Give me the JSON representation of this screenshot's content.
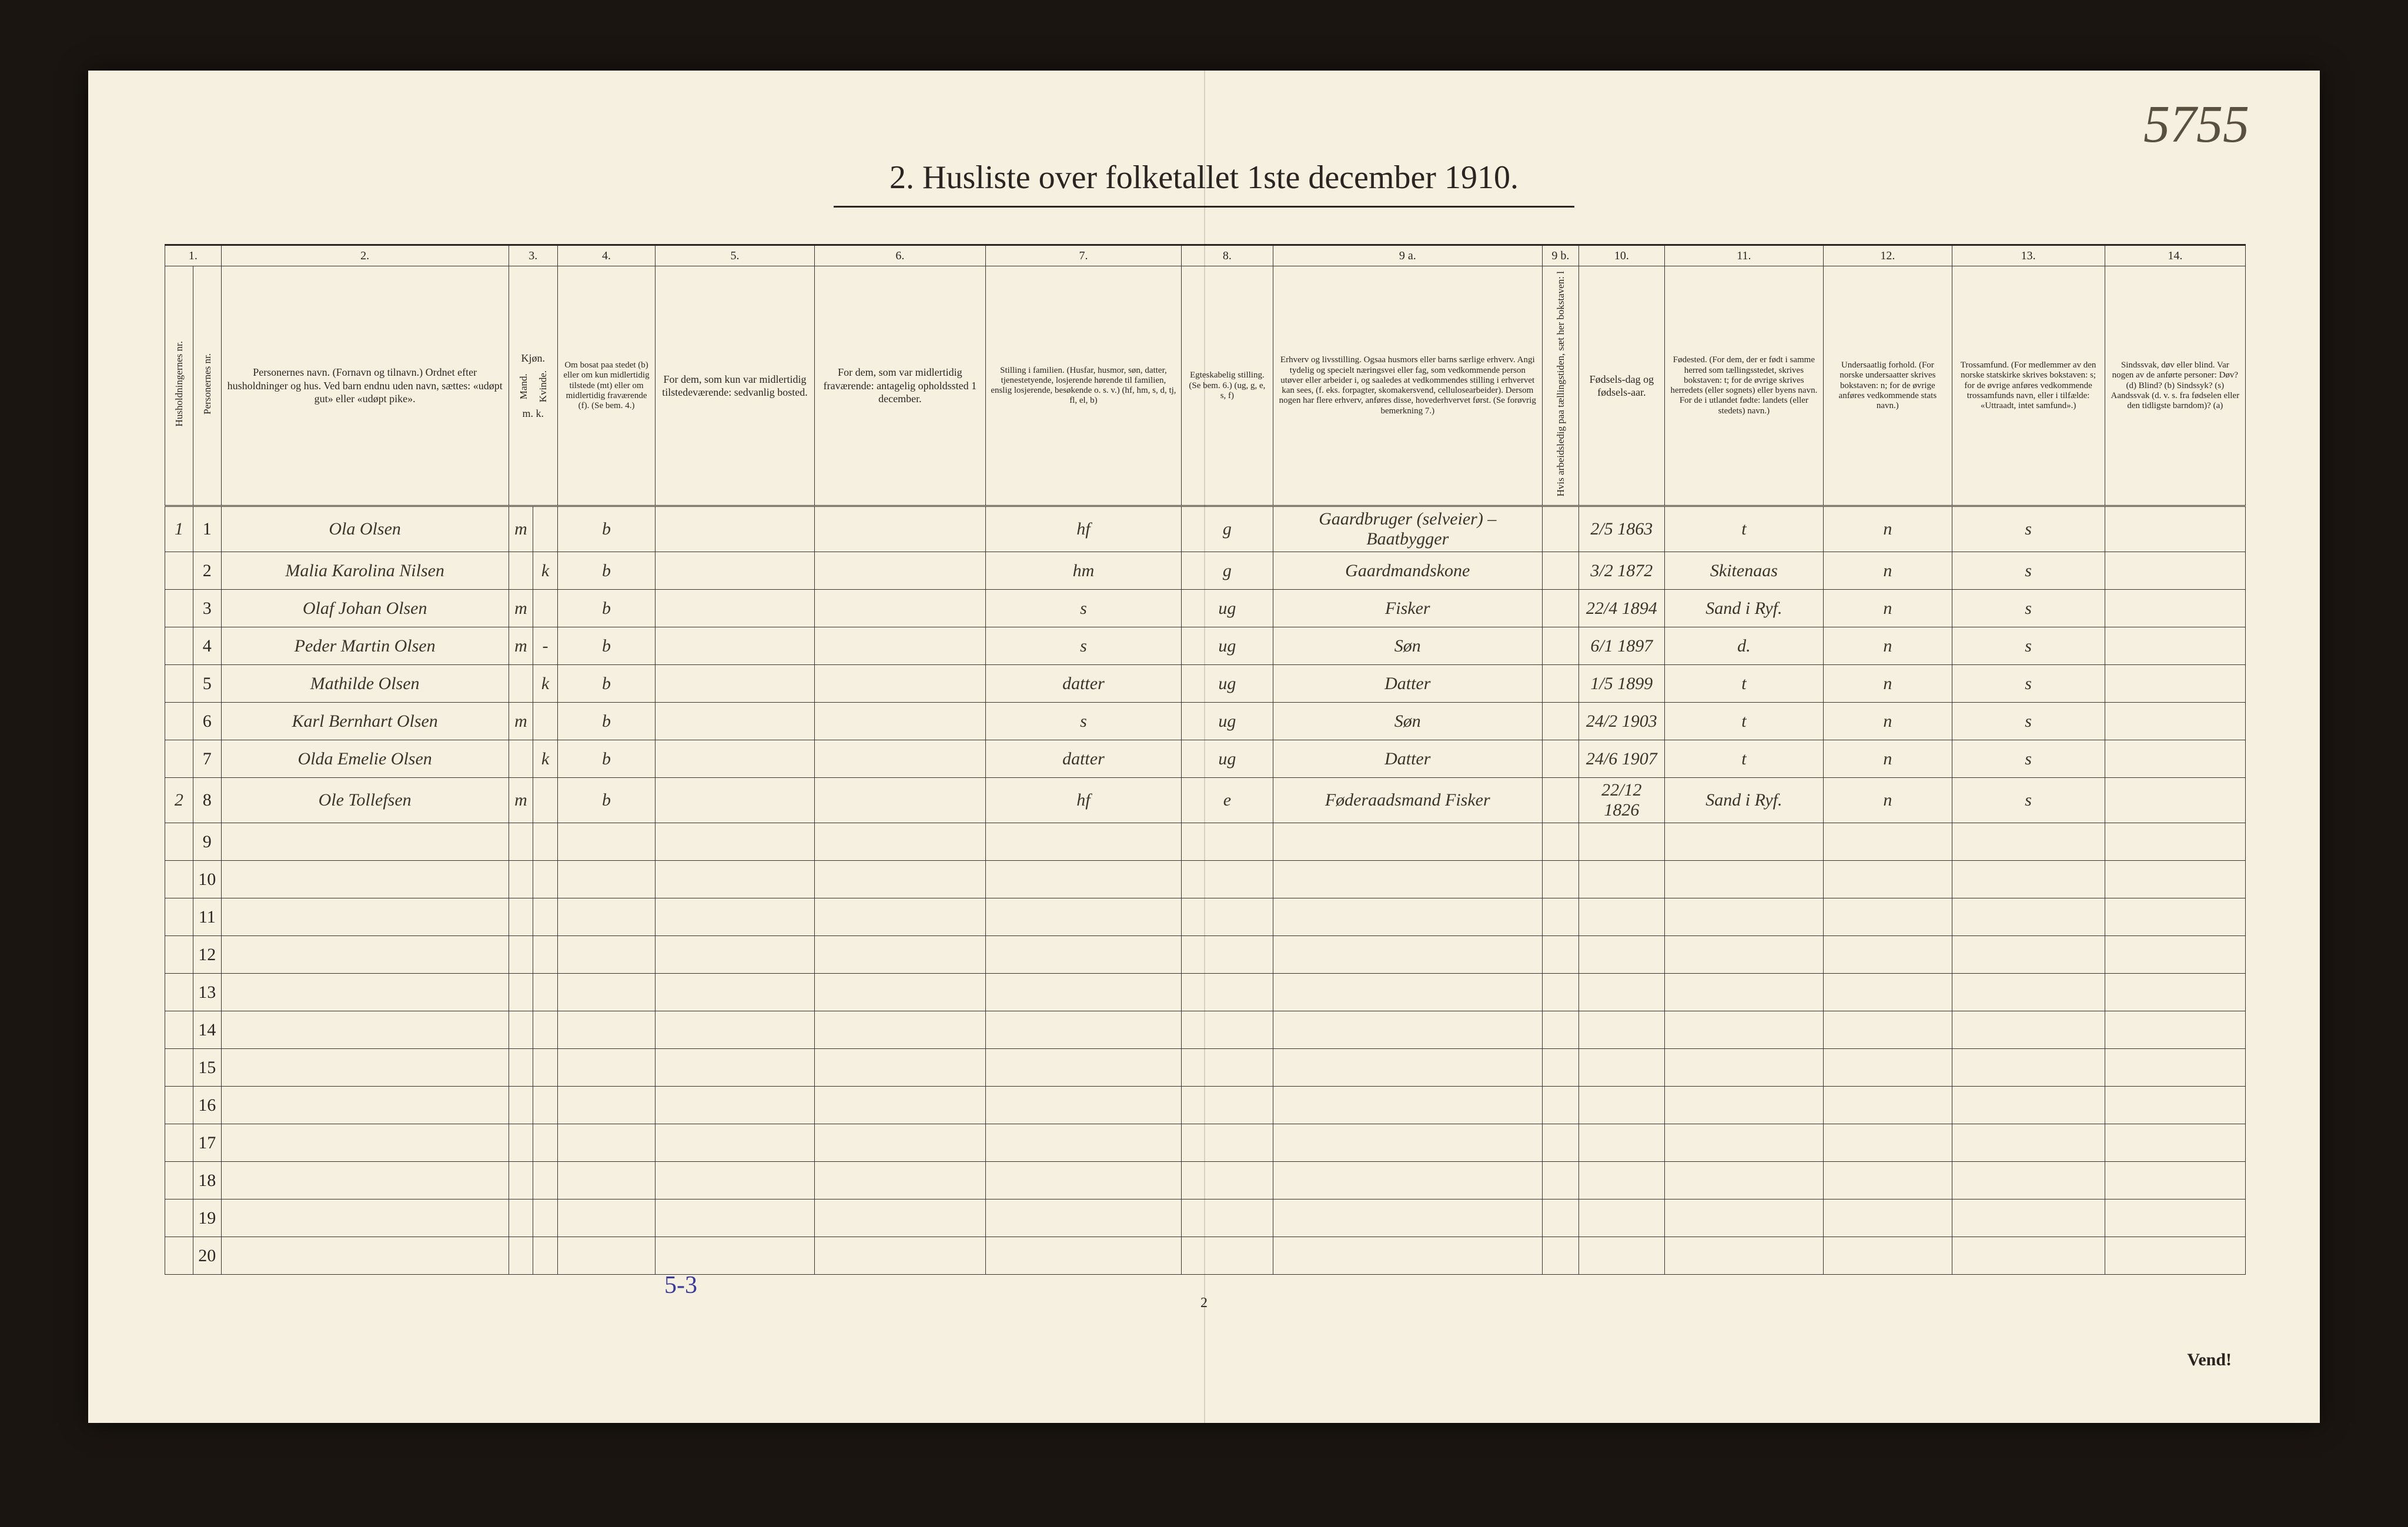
{
  "corner_note": "5755",
  "title": "2.  Husliste over folketallet 1ste december 1910.",
  "page_number": "2",
  "foot_annotation": "5-3",
  "vend": "Vend!",
  "columns": {
    "nums": [
      "1.",
      "2.",
      "3.",
      "4.",
      "5.",
      "6.",
      "7.",
      "8.",
      "9 a.",
      "9 b.",
      "10.",
      "11.",
      "12.",
      "13.",
      "14."
    ],
    "h1a": "Husholdningernes nr.",
    "h1b": "Personernes nr.",
    "h2": "Personernes navn.\n(Fornavn og tilnavn.)\nOrdnet efter husholdninger og hus.\nVed barn endnu uden navn, sættes: «udøpt gut» eller «udøpt pike».",
    "h3": "Kjøn.",
    "h3a": "Mand.",
    "h3b": "Kvinde.",
    "h3foot": "m. k.",
    "h4": "Om bosat paa stedet (b) eller om kun midlertidig tilstede (mt) eller om midlertidig fraværende (f). (Se bem. 4.)",
    "h5": "For dem, som kun var midlertidig tilstedeværende:\nsedvanlig bosted.",
    "h6": "For dem, som var midlertidig fraværende:\nantagelig opholdssted 1 december.",
    "h7": "Stilling i familien.\n(Husfar, husmor, søn, datter, tjenestetyende, losjerende hørende til familien, enslig losjerende, besøkende o. s. v.)\n(hf, hm, s, d, tj, fl, el, b)",
    "h8": "Egteskabelig stilling.\n(Se bem. 6.)\n(ug, g, e, s, f)",
    "h9a": "Erhverv og livsstilling.\nOgsaa husmors eller barns særlige erhverv. Angi tydelig og specielt næringsvei eller fag, som vedkommende person utøver eller arbeider i, og saaledes at vedkommendes stilling i erhvervet kan sees, (f. eks. forpagter, skomakersvend, cellulosearbeider). Dersom nogen har flere erhverv, anføres disse, hovederhvervet først.\n(Se forøvrig bemerkning 7.)",
    "h9b": "Hvis arbeidsledig paa tællingstiden, sæt her bokstaven: l",
    "h10": "Fødsels-dag og fødsels-aar.",
    "h11": "Fødested.\n(For dem, der er født i samme herred som tællingsstedet, skrives bokstaven: t; for de øvrige skrives herredets (eller sognets) eller byens navn. For de i utlandet fødte: landets (eller stedets) navn.)",
    "h12": "Undersaatlig forhold.\n(For norske undersaatter skrives bokstaven: n; for de øvrige anføres vedkommende stats navn.)",
    "h13": "Trossamfund.\n(For medlemmer av den norske statskirke skrives bokstaven: s; for de øvrige anføres vedkommende trossamfunds navn, eller i tilfælde: «Uttraadt, intet samfund».)",
    "h14": "Sindssvak, døv eller blind.\nVar nogen av de anførte personer:\nDøv? (d)\nBlind? (b)\nSindssyk? (s)\nAandssvak (d. v. s. fra fødselen eller den tidligste barndom)? (a)"
  },
  "rows": [
    {
      "hh": "1",
      "p": "1",
      "name": "Ola Olsen",
      "m": "m",
      "k": "",
      "c4": "b",
      "c5": "",
      "c6": "",
      "c7": "hf",
      "c8": "g",
      "c9a": "Gaardbruger (selveier) – Baatbygger",
      "c9b": "",
      "c10": "2/5 1863",
      "c11": "t",
      "c12": "n",
      "c13": "s",
      "c14": ""
    },
    {
      "hh": "",
      "p": "2",
      "name": "Malia Karolina Nilsen",
      "m": "",
      "k": "k",
      "c4": "b",
      "c5": "",
      "c6": "",
      "c7": "hm",
      "c8": "g",
      "c9a": "Gaardmandskone",
      "c9b": "",
      "c10": "3/2 1872",
      "c11": "Skitenaas",
      "c12": "n",
      "c13": "s",
      "c14": ""
    },
    {
      "hh": "",
      "p": "3",
      "name": "Olaf Johan Olsen",
      "m": "m",
      "k": "",
      "c4": "b",
      "c5": "",
      "c6": "",
      "c7": "s",
      "c8": "ug",
      "c9a": "Fisker",
      "c9b": "",
      "c10": "22/4 1894",
      "c11": "Sand i Ryf.",
      "c12": "n",
      "c13": "s",
      "c14": ""
    },
    {
      "hh": "",
      "p": "4",
      "name": "Peder Martin Olsen",
      "m": "m",
      "k": "-",
      "c4": "b",
      "c5": "",
      "c6": "",
      "c7": "s",
      "c8": "ug",
      "c9a": "Søn",
      "c9b": "",
      "c10": "6/1 1897",
      "c11": "d.",
      "c12": "n",
      "c13": "s",
      "c14": ""
    },
    {
      "hh": "",
      "p": "5",
      "name": "Mathilde Olsen",
      "m": "",
      "k": "k",
      "c4": "b",
      "c5": "",
      "c6": "",
      "c7": "datter",
      "c8": "ug",
      "c9a": "Datter",
      "c9b": "",
      "c10": "1/5 1899",
      "c11": "t",
      "c12": "n",
      "c13": "s",
      "c14": ""
    },
    {
      "hh": "",
      "p": "6",
      "name": "Karl Bernhart Olsen",
      "m": "m",
      "k": "",
      "c4": "b",
      "c5": "",
      "c6": "",
      "c7": "s",
      "c8": "ug",
      "c9a": "Søn",
      "c9b": "",
      "c10": "24/2 1903",
      "c11": "t",
      "c12": "n",
      "c13": "s",
      "c14": ""
    },
    {
      "hh": "",
      "p": "7",
      "name": "Olda Emelie Olsen",
      "m": "",
      "k": "k",
      "c4": "b",
      "c5": "",
      "c6": "",
      "c7": "datter",
      "c8": "ug",
      "c9a": "Datter",
      "c9b": "",
      "c10": "24/6 1907",
      "c11": "t",
      "c12": "n",
      "c13": "s",
      "c14": ""
    },
    {
      "hh": "2",
      "p": "8",
      "name": "Ole Tollefsen",
      "m": "m",
      "k": "",
      "c4": "b",
      "c5": "",
      "c6": "",
      "c7": "hf",
      "c8": "e",
      "c9a": "Føderaadsmand  Fisker",
      "c9b": "",
      "c10": "22/12 1826",
      "c11": "Sand i Ryf.",
      "c12": "n",
      "c13": "s",
      "c14": ""
    },
    {
      "hh": "",
      "p": "9",
      "name": "",
      "m": "",
      "k": "",
      "c4": "",
      "c5": "",
      "c6": "",
      "c7": "",
      "c8": "",
      "c9a": "",
      "c9b": "",
      "c10": "",
      "c11": "",
      "c12": "",
      "c13": "",
      "c14": ""
    },
    {
      "hh": "",
      "p": "10",
      "name": "",
      "m": "",
      "k": "",
      "c4": "",
      "c5": "",
      "c6": "",
      "c7": "",
      "c8": "",
      "c9a": "",
      "c9b": "",
      "c10": "",
      "c11": "",
      "c12": "",
      "c13": "",
      "c14": ""
    },
    {
      "hh": "",
      "p": "11",
      "name": "",
      "m": "",
      "k": "",
      "c4": "",
      "c5": "",
      "c6": "",
      "c7": "",
      "c8": "",
      "c9a": "",
      "c9b": "",
      "c10": "",
      "c11": "",
      "c12": "",
      "c13": "",
      "c14": ""
    },
    {
      "hh": "",
      "p": "12",
      "name": "",
      "m": "",
      "k": "",
      "c4": "",
      "c5": "",
      "c6": "",
      "c7": "",
      "c8": "",
      "c9a": "",
      "c9b": "",
      "c10": "",
      "c11": "",
      "c12": "",
      "c13": "",
      "c14": ""
    },
    {
      "hh": "",
      "p": "13",
      "name": "",
      "m": "",
      "k": "",
      "c4": "",
      "c5": "",
      "c6": "",
      "c7": "",
      "c8": "",
      "c9a": "",
      "c9b": "",
      "c10": "",
      "c11": "",
      "c12": "",
      "c13": "",
      "c14": ""
    },
    {
      "hh": "",
      "p": "14",
      "name": "",
      "m": "",
      "k": "",
      "c4": "",
      "c5": "",
      "c6": "",
      "c7": "",
      "c8": "",
      "c9a": "",
      "c9b": "",
      "c10": "",
      "c11": "",
      "c12": "",
      "c13": "",
      "c14": ""
    },
    {
      "hh": "",
      "p": "15",
      "name": "",
      "m": "",
      "k": "",
      "c4": "",
      "c5": "",
      "c6": "",
      "c7": "",
      "c8": "",
      "c9a": "",
      "c9b": "",
      "c10": "",
      "c11": "",
      "c12": "",
      "c13": "",
      "c14": ""
    },
    {
      "hh": "",
      "p": "16",
      "name": "",
      "m": "",
      "k": "",
      "c4": "",
      "c5": "",
      "c6": "",
      "c7": "",
      "c8": "",
      "c9a": "",
      "c9b": "",
      "c10": "",
      "c11": "",
      "c12": "",
      "c13": "",
      "c14": ""
    },
    {
      "hh": "",
      "p": "17",
      "name": "",
      "m": "",
      "k": "",
      "c4": "",
      "c5": "",
      "c6": "",
      "c7": "",
      "c8": "",
      "c9a": "",
      "c9b": "",
      "c10": "",
      "c11": "",
      "c12": "",
      "c13": "",
      "c14": ""
    },
    {
      "hh": "",
      "p": "18",
      "name": "",
      "m": "",
      "k": "",
      "c4": "",
      "c5": "",
      "c6": "",
      "c7": "",
      "c8": "",
      "c9a": "",
      "c9b": "",
      "c10": "",
      "c11": "",
      "c12": "",
      "c13": "",
      "c14": ""
    },
    {
      "hh": "",
      "p": "19",
      "name": "",
      "m": "",
      "k": "",
      "c4": "",
      "c5": "",
      "c6": "",
      "c7": "",
      "c8": "",
      "c9a": "",
      "c9b": "",
      "c10": "",
      "c11": "",
      "c12": "",
      "c13": "",
      "c14": ""
    },
    {
      "hh": "",
      "p": "20",
      "name": "",
      "m": "",
      "k": "",
      "c4": "",
      "c5": "",
      "c6": "",
      "c7": "",
      "c8": "",
      "c9a": "",
      "c9b": "",
      "c10": "",
      "c11": "",
      "c12": "",
      "c13": "",
      "c14": ""
    }
  ],
  "colors": {
    "paper": "#f5f0e0",
    "ink": "#2a2520",
    "handwriting": "#3b342a",
    "blue_note": "#3a3a9a",
    "background": "#1a1510"
  }
}
